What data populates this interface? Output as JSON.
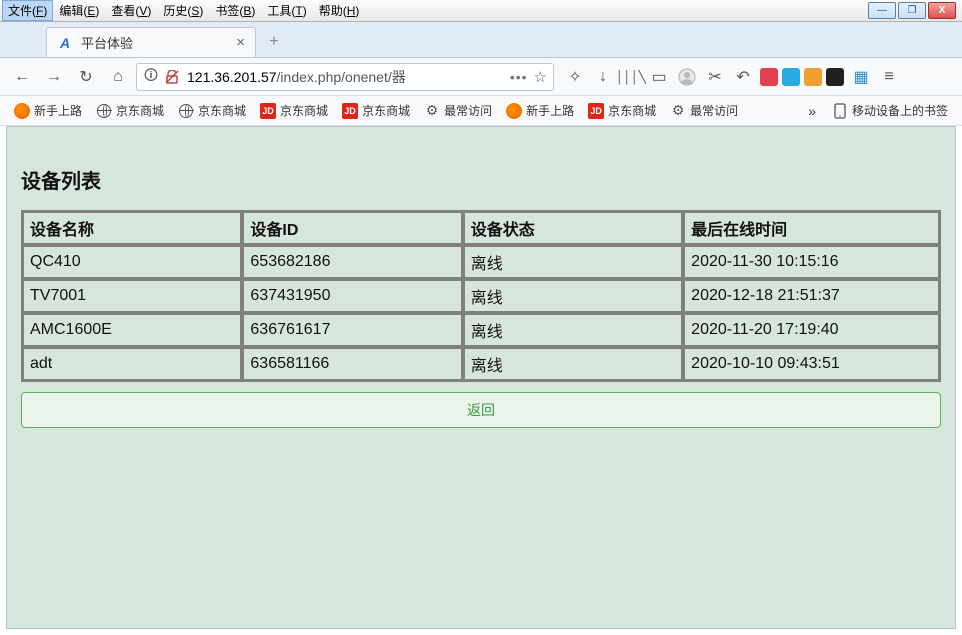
{
  "os_menu": {
    "items": [
      {
        "label": "文件",
        "key": "F",
        "active": true
      },
      {
        "label": "编辑",
        "key": "E"
      },
      {
        "label": "查看",
        "key": "V"
      },
      {
        "label": "历史",
        "key": "S"
      },
      {
        "label": "书签",
        "key": "B"
      },
      {
        "label": "工具",
        "key": "T"
      },
      {
        "label": "帮助",
        "key": "H"
      }
    ]
  },
  "window_buttons": {
    "min": "—",
    "max": "❐",
    "close": "X"
  },
  "tab": {
    "title": "平台体验",
    "close": "×",
    "newtab": "+"
  },
  "nav": {
    "back": "←",
    "forward": "→",
    "reload": "↻",
    "home": "⌂",
    "shield": "🛈",
    "nohttps": "⧄",
    "url_host": "121.36.201.57",
    "url_path": "/index.php/onenet/器",
    "ellipsis": "•••",
    "star": "☆",
    "download": "↓",
    "library": "│││╲",
    "reader": "▭",
    "account": "◉",
    "shot": "✂",
    "undoclose": "↶",
    "menu": "≡",
    "overflow": "»",
    "gift": "▦"
  },
  "ext_colors": [
    "#e04050",
    "#2aa8e0",
    "#f0a030",
    "#202020"
  ],
  "bookmarks": {
    "items": [
      {
        "icon": "ff",
        "label": "新手上路"
      },
      {
        "icon": "globe",
        "label": "京东商城"
      },
      {
        "icon": "globe",
        "label": "京东商城"
      },
      {
        "icon": "jd",
        "label": "京东商城"
      },
      {
        "icon": "jd",
        "label": "京东商城"
      },
      {
        "icon": "gear",
        "label": "最常访问"
      },
      {
        "icon": "ff",
        "label": "新手上路"
      },
      {
        "icon": "jd",
        "label": "京东商城"
      },
      {
        "icon": "gear",
        "label": "最常访问"
      }
    ],
    "overflow": "»",
    "mobile": "移动设备上的书签"
  },
  "page": {
    "heading": "设备列表",
    "table": {
      "columns": [
        "设备名称",
        "设备ID",
        "设备状态",
        "最后在线时间"
      ],
      "widths": [
        "24%",
        "24%",
        "24%",
        "28%"
      ],
      "rows": [
        [
          "QC410",
          "653682186",
          "离线",
          "2020-11-30 10:15:16"
        ],
        [
          "TV7001",
          "637431950",
          "离线",
          "2020-12-18 21:51:37"
        ],
        [
          "AMC1600E",
          "636761617",
          "离线",
          "2020-11-20 17:19:40"
        ],
        [
          "adt",
          "636581166",
          "离线",
          "2020-10-10 09:43:51"
        ]
      ]
    },
    "back_label": "返回",
    "colors": {
      "page_bg": "#d7e6dc",
      "btn_border": "#58b460",
      "btn_text": "#3a9a42",
      "btn_bg": "#eaf4eb"
    }
  }
}
